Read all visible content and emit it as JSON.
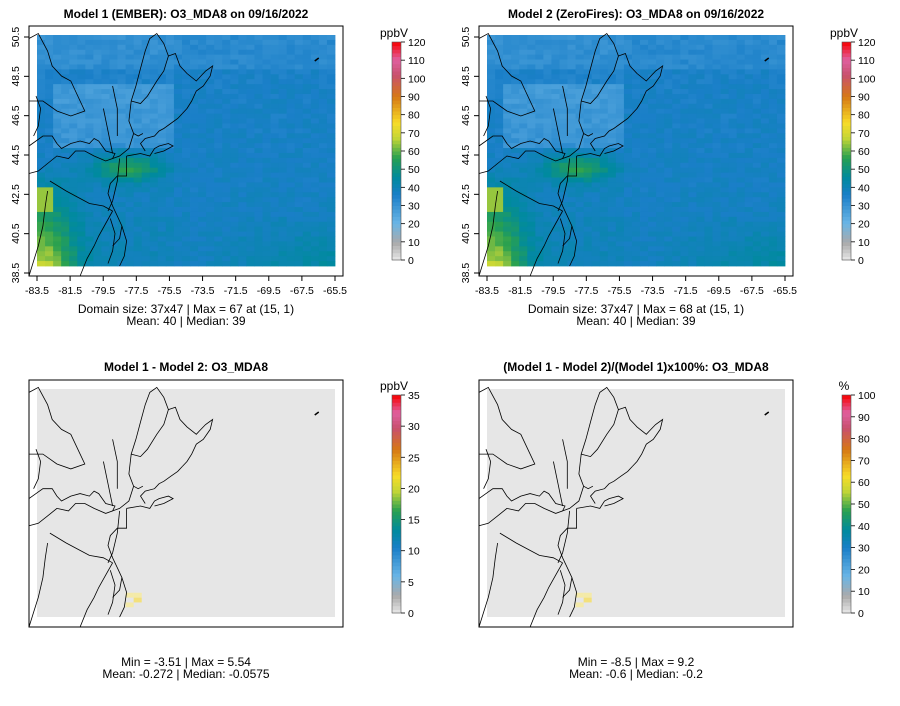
{
  "chart_data": [
    {
      "type": "heatmap",
      "title": "Model 1 (EMBER): O3_MDA8 on 09/16/2022",
      "x_ticks": [
        "-83.5",
        "-81.5",
        "-79.5",
        "-77.5",
        "-75.5",
        "-73.5",
        "-71.5",
        "-69.5",
        "-67.5",
        "-65.5"
      ],
      "y_ticks": [
        "38.5",
        "40.5",
        "42.5",
        "44.5",
        "46.5",
        "48.5",
        "50.5"
      ],
      "colorbar": {
        "unit": "ppbV",
        "ticks": [
          "0",
          "10",
          "20",
          "30",
          "40",
          "50",
          "60",
          "70",
          "80",
          "90",
          "100",
          "110",
          "120"
        ],
        "range": [
          0,
          120
        ]
      },
      "footer": [
        "Domain size: 37x47 | Max = 67 at (15, 1)",
        "Mean: 40 |  Median: 39"
      ],
      "base_value": 37
    },
    {
      "type": "heatmap",
      "title": "Model 2 (ZeroFires): O3_MDA8 on 09/16/2022",
      "x_ticks": [
        "-83.5",
        "-81.5",
        "-79.5",
        "-77.5",
        "-75.5",
        "-73.5",
        "-71.5",
        "-69.5",
        "-67.5",
        "-65.5"
      ],
      "y_ticks": [
        "38.5",
        "40.5",
        "42.5",
        "44.5",
        "46.5",
        "48.5",
        "50.5"
      ],
      "colorbar": {
        "unit": "ppbV",
        "ticks": [
          "0",
          "10",
          "20",
          "30",
          "40",
          "50",
          "60",
          "70",
          "80",
          "90",
          "100",
          "110",
          "120"
        ],
        "range": [
          0,
          120
        ]
      },
      "footer": [
        "Domain size: 37x47 | Max = 68 at (15, 1)",
        "Mean: 40 |  Median: 39"
      ],
      "base_value": 37
    },
    {
      "type": "heatmap",
      "title": "Model 1 - Model 2: O3_MDA8",
      "colorbar": {
        "unit": "ppbV",
        "ticks": [
          "0",
          "5",
          "10",
          "15",
          "20",
          "25",
          "30",
          "35"
        ],
        "range": [
          0,
          35
        ]
      },
      "footer": [
        "Min = -3.51 | Max = 5.54",
        "Mean: -0.272 |  Median: -0.0575"
      ],
      "base_value": 0
    },
    {
      "type": "heatmap",
      "title": "(Model 1 - Model 2)/(Model 1)x100%: O3_MDA8",
      "colorbar": {
        "unit": "%",
        "ticks": [
          "0",
          "10",
          "20",
          "30",
          "40",
          "50",
          "60",
          "70",
          "80",
          "90",
          "100"
        ],
        "range": [
          0,
          100
        ]
      },
      "footer": [
        "Min = -8.5 | Max = 9.2",
        "Mean: -0.6 |  Median: -0.2"
      ],
      "base_value": 0
    }
  ]
}
